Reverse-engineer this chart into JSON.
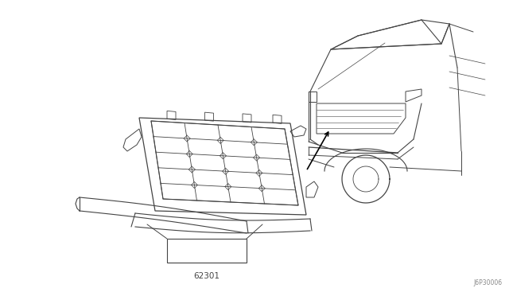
{
  "background_color": "#ffffff",
  "line_color": "#444444",
  "part_number": "62301",
  "ref_code": "J6P30006",
  "figsize": [
    6.4,
    3.72
  ],
  "dpi": 100
}
